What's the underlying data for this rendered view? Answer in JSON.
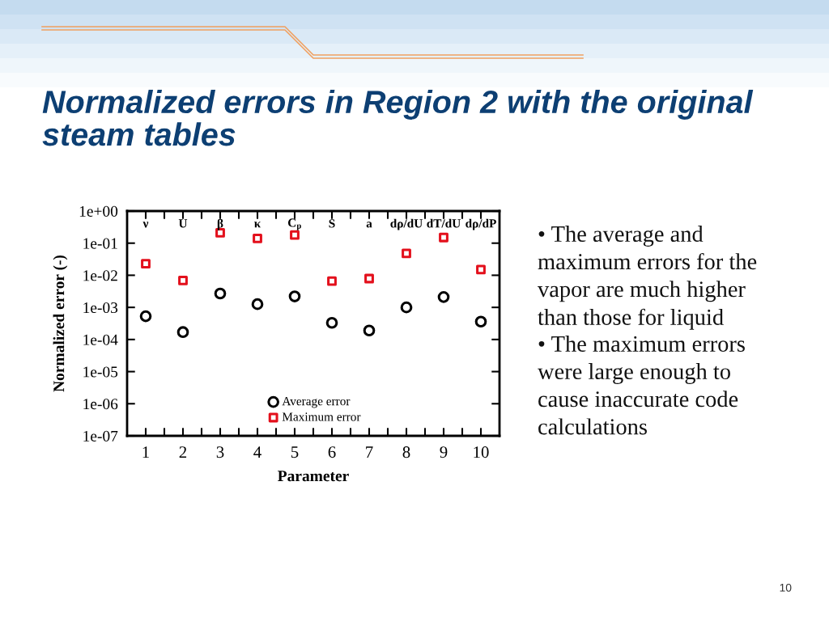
{
  "chart_data": {
    "type": "scatter",
    "title": "Normalized errors in Region 2 with the original steam tables",
    "xlabel": "Parameter",
    "ylabel": "Normalized error (-)",
    "x": [
      1,
      2,
      3,
      4,
      5,
      6,
      7,
      8,
      9,
      10
    ],
    "series": [
      {
        "name": "Average error",
        "color": "#000000",
        "marker": "circle",
        "values": [
          0.00053,
          0.00017,
          0.0027,
          0.00126,
          0.0022,
          0.00033,
          0.00019,
          0.001,
          0.0021,
          0.00036
        ]
      },
      {
        "name": "Maximum error",
        "color": "#e3101c",
        "marker": "square",
        "values": [
          0.023,
          0.0069,
          0.21,
          0.14,
          0.18,
          0.0066,
          0.0079,
          0.048,
          0.15,
          0.015
        ]
      }
    ],
    "log": "y",
    "grid": false,
    "legend": "bottom",
    "xlim": [
      0.5,
      10.5
    ],
    "xticks": [
      1,
      {
        "value": 1.5,
        "label": null
      },
      2,
      {
        "value": 2.5,
        "label": null
      },
      3,
      {
        "value": 3.5,
        "label": null
      },
      4,
      {
        "value": 4.5,
        "label": null
      },
      5,
      {
        "value": 5.5,
        "label": null
      },
      6,
      {
        "value": 6.5,
        "label": null
      },
      7,
      {
        "value": 7.5,
        "label": null
      },
      8,
      {
        "value": 8.5,
        "label": null
      },
      9,
      {
        "value": 9.5,
        "label": null
      },
      10
    ],
    "ylim": [
      1e-07,
      1
    ],
    "yticks": [
      {
        "value": 1e-07,
        "label": "1e-07"
      },
      {
        "value": 1e-06,
        "label": "1e-06"
      },
      {
        "value": 1e-05,
        "label": "1e-05"
      },
      {
        "value": 0.0001,
        "label": "1e-04"
      },
      {
        "value": 0.001,
        "label": "1e-03"
      },
      {
        "value": 0.01,
        "label": "1e-02"
      },
      {
        "value": 0.1,
        "label": "1e-01"
      },
      {
        "value": 1,
        "label": "1e+00"
      }
    ],
    "annotations": [
      "ν",
      "U",
      "β",
      "κ",
      "C$_{p}$",
      "S",
      "a",
      "dρ/dU",
      "dT/dU",
      "dρ/dP",
      "• The average and maximum errors for the vapor are much higher than those for liquid",
      "• The maximum errors were large enough to cause inaccurate code calculations",
      "10"
    ]
  }
}
